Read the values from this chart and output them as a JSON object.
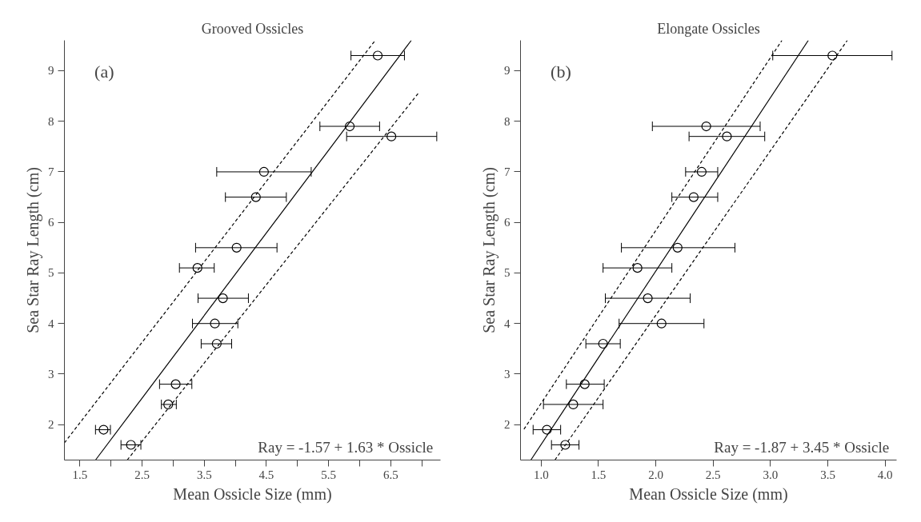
{
  "chart_data": [
    {
      "type": "scatter",
      "title": "Grooved Ossicles",
      "xlabel": "Mean Ossicle Size (mm)",
      "ylabel": "Sea Star Ray Length (cm)",
      "annotations": [
        "(a)",
        "Ray = -1.57 + 1.63 * Ossicle"
      ],
      "grid": false,
      "xlim": [
        1.25,
        7.3
      ],
      "ylim": [
        1.3,
        9.6
      ],
      "xticks": [
        1.5,
        {
          "value": 2.0,
          "label": null
        },
        2.5,
        {
          "value": 3.0,
          "label": null
        },
        3.5,
        {
          "value": 4.0,
          "label": null
        },
        4.5,
        {
          "value": 5.0,
          "label": null
        },
        5.5,
        {
          "value": 6.0,
          "label": null
        },
        6.5,
        {
          "value": 7.0,
          "label": null
        }
      ],
      "yticks": [
        2,
        3,
        4,
        5,
        6,
        7,
        8,
        9
      ],
      "series": [
        {
          "marker": "circle",
          "color": "#000000",
          "x": [
            6.29,
            5.84,
            6.51,
            4.46,
            4.33,
            4.02,
            3.39,
            3.8,
            3.67,
            3.7,
            3.04,
            2.92,
            1.88,
            2.32
          ],
          "values": [
            9.3,
            7.9,
            7.7,
            7.0,
            6.5,
            5.5,
            5.1,
            4.5,
            4.0,
            3.6,
            2.8,
            2.4,
            1.9,
            1.6
          ],
          "xerrors": [
            [
              5.86,
              6.72
            ],
            [
              5.36,
              6.32
            ],
            [
              5.79,
              7.24
            ],
            [
              3.7,
              5.22
            ],
            [
              3.84,
              4.82
            ],
            [
              3.36,
              4.67
            ],
            [
              3.1,
              3.66
            ],
            [
              3.4,
              4.21
            ],
            [
              3.31,
              4.04
            ],
            [
              3.45,
              3.94
            ],
            [
              2.78,
              3.3
            ],
            [
              2.81,
              3.05
            ],
            [
              1.75,
              1.99
            ],
            [
              2.16,
              2.48
            ]
          ]
        },
        {
          "type": "line",
          "color": "#000000",
          "line_style": "solid",
          "x": [
            1.75,
            6.83
          ],
          "values": [
            1.3,
            9.6
          ]
        },
        {
          "type": "line",
          "color": "#000000",
          "line_style": "dashed",
          "x": [
            1.25,
            6.25
          ],
          "values": [
            1.64,
            9.6
          ]
        },
        {
          "type": "line",
          "color": "#000000",
          "line_style": "dashed",
          "x": [
            2.26,
            6.96
          ],
          "values": [
            1.3,
            8.58
          ]
        }
      ]
    },
    {
      "type": "scatter",
      "title": "Elongate Ossicles",
      "xlabel": "Mean Ossicle Size (mm)",
      "ylabel": "Sea Star Ray Length (cm)",
      "annotations": [
        "(b)",
        "Ray = -1.87 + 3.45 * Ossicle"
      ],
      "grid": false,
      "xlim": [
        0.82,
        4.1
      ],
      "ylim": [
        1.3,
        9.6
      ],
      "xticks": [
        {
          "value": 1.0,
          "label": "1.0"
        },
        1.5,
        {
          "value": 2.0,
          "label": "2.0"
        },
        2.5,
        {
          "value": 3.0,
          "label": "3.0"
        },
        3.5,
        {
          "value": 4.0,
          "label": "4.0"
        }
      ],
      "yticks": [
        2,
        3,
        4,
        5,
        6,
        7,
        8,
        9
      ],
      "series": [
        {
          "marker": "circle",
          "color": "#000000",
          "x": [
            3.54,
            2.44,
            2.62,
            2.4,
            2.33,
            2.19,
            1.84,
            1.93,
            2.05,
            1.54,
            1.38,
            1.28,
            1.05,
            1.21
          ],
          "values": [
            9.3,
            7.9,
            7.7,
            7.0,
            6.5,
            5.5,
            5.1,
            4.5,
            4.0,
            3.6,
            2.8,
            2.4,
            1.9,
            1.6
          ],
          "xerrors": [
            [
              3.02,
              4.06
            ],
            [
              1.97,
              2.91
            ],
            [
              2.29,
              2.95
            ],
            [
              2.26,
              2.54
            ],
            [
              2.14,
              2.54
            ],
            [
              1.7,
              2.69
            ],
            [
              1.54,
              2.14
            ],
            [
              1.56,
              2.3
            ],
            [
              1.68,
              2.42
            ],
            [
              1.39,
              1.69
            ],
            [
              1.22,
              1.55
            ],
            [
              1.02,
              1.54
            ],
            [
              0.93,
              1.17
            ],
            [
              1.09,
              1.33
            ]
          ]
        },
        {
          "type": "line",
          "color": "#000000",
          "line_style": "solid",
          "x": [
            0.91,
            3.33
          ],
          "values": [
            1.3,
            9.6
          ]
        },
        {
          "type": "line",
          "color": "#000000",
          "line_style": "dashed",
          "x": [
            0.85,
            3.1
          ],
          "values": [
            1.91,
            9.6
          ]
        },
        {
          "type": "line",
          "color": "#000000",
          "line_style": "dashed",
          "x": [
            1.12,
            3.67
          ],
          "values": [
            1.3,
            9.6
          ]
        }
      ]
    }
  ]
}
